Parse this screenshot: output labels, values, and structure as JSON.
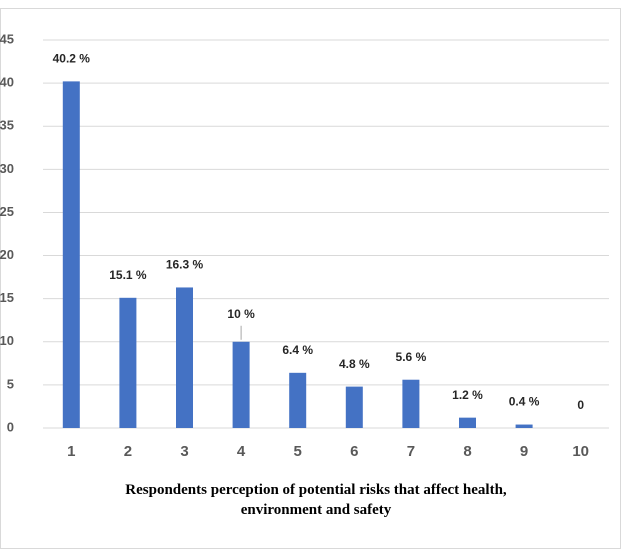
{
  "chart_data": {
    "type": "bar",
    "x_label": "Respondents perception of potential risks that affect health, environment and safety",
    "categories": [
      "1",
      "2",
      "3",
      "4",
      "5",
      "6",
      "7",
      "8",
      "9",
      "10"
    ],
    "values": [
      40.2,
      15.1,
      16.3,
      10,
      6.4,
      4.8,
      5.6,
      1.2,
      0.4,
      0
    ],
    "value_labels": [
      "40.2 %",
      "15.1 %",
      "16.3 %",
      "10 %",
      "6.4 %",
      "4.8 %",
      "5.6 %",
      "1.2 %",
      "0.4 %",
      "0"
    ],
    "color": "#4472c4",
    "ylim": [
      0,
      45
    ],
    "yticks": [
      0,
      5,
      10,
      15,
      20,
      25,
      30,
      35,
      40,
      45
    ],
    "grid": true
  }
}
